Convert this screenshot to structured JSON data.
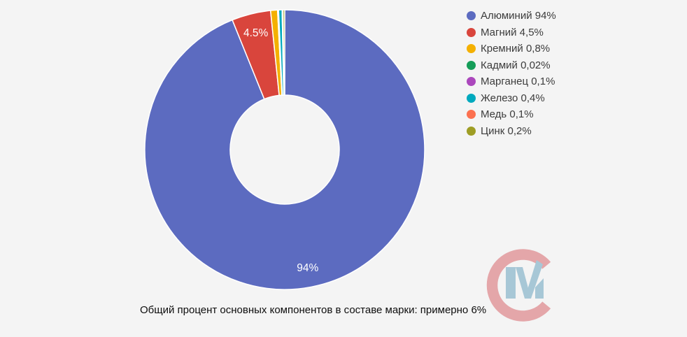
{
  "background_color": "#f4f4f4",
  "chart_data": {
    "type": "pie",
    "subtype": "donut",
    "title": "",
    "legend_position": "right",
    "start_angle_deg": 0,
    "direction": "clockwise",
    "inner_radius_ratio": 0.39,
    "slice_label_color": "#ffffff",
    "slice_gap_color": "#ffffff",
    "slices": [
      {
        "name": "Алюминий",
        "value": 94,
        "color": "#5C6BC0",
        "legend_label": "Алюминий 94%",
        "slice_label": "94%"
      },
      {
        "name": "Магний",
        "value": 4.5,
        "color": "#D9453C",
        "legend_label": "Магний 4,5%",
        "slice_label": "4.5%"
      },
      {
        "name": "Кремний",
        "value": 0.8,
        "color": "#F4B000",
        "legend_label": "Кремний 0,8%",
        "slice_label": ""
      },
      {
        "name": "Кадмий",
        "value": 0.02,
        "color": "#159D58",
        "legend_label": "Кадмий 0,02%",
        "slice_label": ""
      },
      {
        "name": "Марганец",
        "value": 0.1,
        "color": "#AB47BC",
        "legend_label": "Марганец 0,1%",
        "slice_label": ""
      },
      {
        "name": "Железо",
        "value": 0.4,
        "color": "#00A9BE",
        "legend_label": "Железо 0,4%",
        "slice_label": ""
      },
      {
        "name": "Медь",
        "value": 0.1,
        "color": "#FC7150",
        "legend_label": "Медь 0,1%",
        "slice_label": ""
      },
      {
        "name": "Цинк",
        "value": 0.2,
        "color": "#9E9D24",
        "legend_label": "Цинк 0,2%",
        "slice_label": ""
      }
    ]
  },
  "caption": "Общий процент основных компонентов в составе марки: примерно 6%",
  "logo": {
    "c_color": "#E4A6A9",
    "m_color": "#A7C7D6"
  }
}
